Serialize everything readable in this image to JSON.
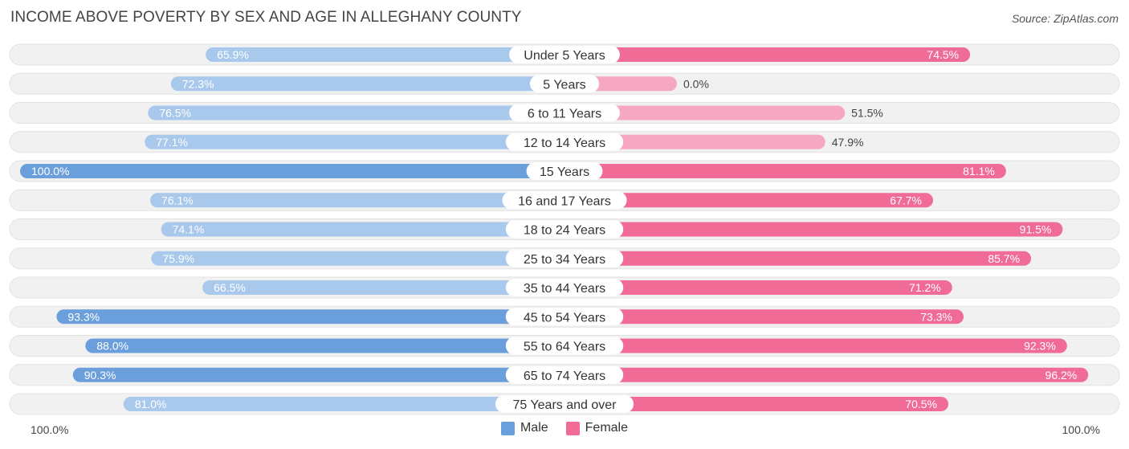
{
  "header": {
    "title": "INCOME ABOVE POVERTY BY SEX AND AGE IN ALLEGHANY COUNTY",
    "source": "Source: ZipAtlas.com"
  },
  "axis": {
    "left_label": "100.0%",
    "right_label": "100.0%"
  },
  "legend": {
    "male_label": "Male",
    "female_label": "Female"
  },
  "colors": {
    "male_dark": "#6a9fdb",
    "male_light": "#a8c8ec",
    "female_dark": "#f06b96",
    "female_light": "#f6a8c2",
    "row_bg": "#f1f1f1"
  },
  "chart_data": {
    "type": "bar",
    "orientation": "horizontal-diverging",
    "categories": [
      "Under 5 Years",
      "5 Years",
      "6 to 11 Years",
      "12 to 14 Years",
      "15 Years",
      "16 and 17 Years",
      "18 to 24 Years",
      "25 to 34 Years",
      "35 to 44 Years",
      "45 to 54 Years",
      "55 to 64 Years",
      "65 to 74 Years",
      "75 Years and over"
    ],
    "series": [
      {
        "name": "Male",
        "values": [
          65.9,
          72.3,
          76.5,
          77.1,
          100.0,
          76.1,
          74.1,
          75.9,
          66.5,
          93.3,
          88.0,
          90.3,
          81.0
        ]
      },
      {
        "name": "Female",
        "values": [
          74.5,
          0.0,
          51.5,
          47.9,
          81.1,
          67.7,
          91.5,
          85.7,
          71.2,
          73.3,
          92.3,
          96.2,
          70.5
        ]
      }
    ],
    "value_labels": {
      "Male": [
        "65.9%",
        "72.3%",
        "76.5%",
        "77.1%",
        "100.0%",
        "76.1%",
        "74.1%",
        "75.9%",
        "66.5%",
        "93.3%",
        "88.0%",
        "90.3%",
        "81.0%"
      ],
      "Female": [
        "74.5%",
        "0.0%",
        "51.5%",
        "47.9%",
        "81.1%",
        "67.7%",
        "91.5%",
        "85.7%",
        "71.2%",
        "73.3%",
        "92.3%",
        "96.2%",
        "70.5%"
      ]
    },
    "xlim": [
      0,
      100
    ],
    "legend_position": "bottom-center"
  }
}
